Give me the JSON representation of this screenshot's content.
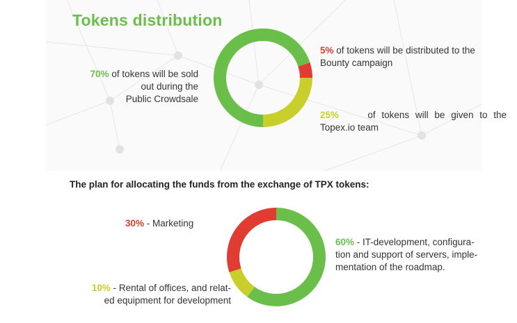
{
  "section1": {
    "title": "Tokens distribution",
    "labels": {
      "crowdsale": {
        "pct": "70%",
        "text_1": " of tokens will be sold",
        "text_2": "out during the",
        "text_3": "Public Crowdsale"
      },
      "bounty": {
        "pct": "5%",
        "text_1": " of tokens will be distributed to the",
        "text_2": "Bounty campaign"
      },
      "team": {
        "pct": "25%",
        "text_1": " of tokens will be given to the",
        "text_2": "Topex.io team"
      }
    }
  },
  "section2": {
    "title": "The plan for allocating the funds from the exchange of TPX tokens:",
    "labels": {
      "marketing": {
        "pct": "30%",
        "text": " - Marketing"
      },
      "it": {
        "pct": "60%",
        "text_1": " - IT-development, configura-",
        "text_2": "tion and support of servers, imple-",
        "text_3": "mentation of the roadmap."
      },
      "rental": {
        "pct": "10%",
        "text_1": " - Rental of offices, and relat-",
        "text_2": "ed equipment for development"
      }
    }
  },
  "colors": {
    "green": "#6abf4b",
    "red": "#e03c31",
    "yellow": "#c9cf2a",
    "title_green": "#6abf4b"
  },
  "chart_data": [
    {
      "type": "pie",
      "variant": "donut",
      "title": "Tokens distribution",
      "categories": [
        "Public Crowdsale",
        "Bounty campaign",
        "Topex.io team"
      ],
      "values": [
        70,
        5,
        25
      ],
      "unit": "%",
      "colors": [
        "#6abf4b",
        "#e03c31",
        "#c9cf2a"
      ]
    },
    {
      "type": "pie",
      "variant": "donut",
      "title": "The plan for allocating the funds from the exchange of TPX tokens:",
      "categories": [
        "IT-development",
        "Rental of offices",
        "Marketing"
      ],
      "values": [
        60,
        10,
        30
      ],
      "unit": "%",
      "colors": [
        "#6abf4b",
        "#c9cf2a",
        "#e03c31"
      ]
    }
  ]
}
